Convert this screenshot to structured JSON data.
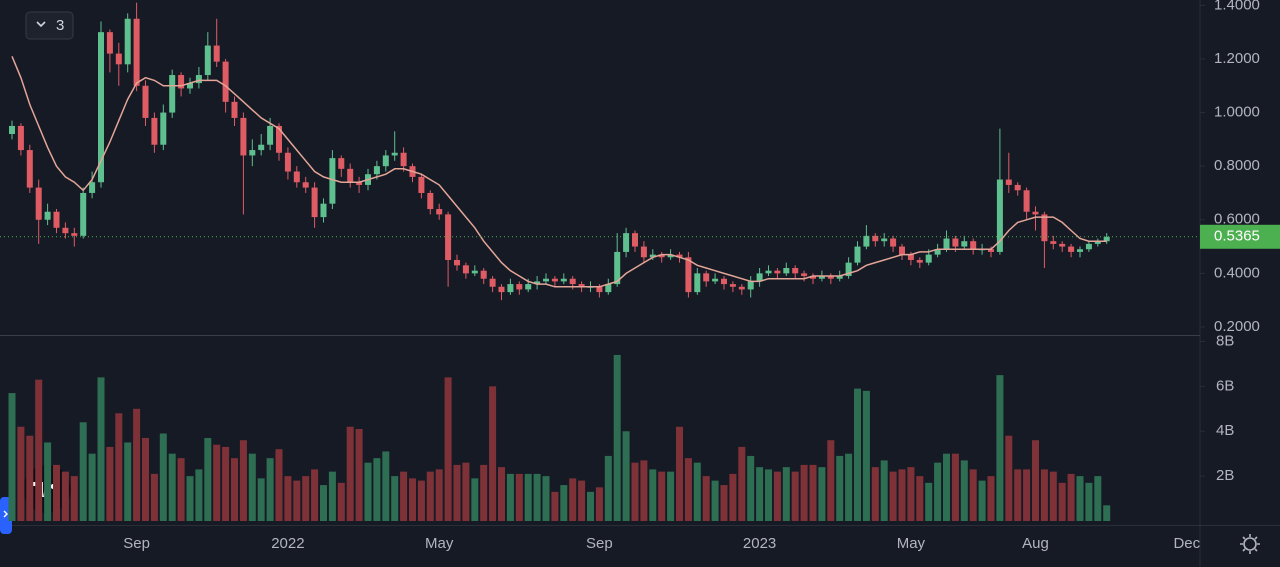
{
  "chart_data": [
    {
      "type": "candlestick",
      "indicator_count": 3,
      "categories": [
        null,
        null,
        null,
        null,
        null,
        null,
        null,
        null,
        null,
        null,
        null,
        null,
        null,
        null,
        "Sep",
        null,
        null,
        null,
        null,
        null,
        null,
        null,
        null,
        null,
        null,
        null,
        null,
        null,
        null,
        null,
        null,
        "2022",
        null,
        null,
        null,
        null,
        null,
        null,
        null,
        null,
        null,
        null,
        null,
        null,
        null,
        null,
        null,
        null,
        "May",
        null,
        null,
        null,
        null,
        null,
        null,
        null,
        null,
        null,
        null,
        null,
        null,
        null,
        null,
        null,
        null,
        null,
        "Sep",
        null,
        null,
        null,
        null,
        null,
        null,
        null,
        null,
        null,
        null,
        null,
        null,
        null,
        null,
        null,
        null,
        null,
        "2023",
        null,
        null,
        null,
        null,
        null,
        null,
        null,
        null,
        null,
        null,
        null,
        null,
        null,
        null,
        null,
        null,
        "May",
        null,
        null,
        null,
        null,
        null,
        null,
        null,
        null,
        null,
        null,
        null,
        null,
        null,
        "Aug",
        null,
        null,
        null,
        null,
        null,
        null,
        null,
        null,
        null,
        null,
        null,
        null,
        null,
        null,
        null,
        null,
        "Dec"
      ],
      "open": [
        0.92,
        0.95,
        0.86,
        0.72,
        0.6,
        0.63,
        0.57,
        0.55,
        0.54,
        0.7,
        0.74,
        1.3,
        1.22,
        1.18,
        1.35,
        1.1,
        0.98,
        0.88,
        1.0,
        1.14,
        1.09,
        1.11,
        1.14,
        1.25,
        1.19,
        1.04,
        0.98,
        0.84,
        0.86,
        0.88,
        0.95,
        0.85,
        0.78,
        0.74,
        0.72,
        0.61,
        0.66,
        0.83,
        0.79,
        0.74,
        0.73,
        0.77,
        0.8,
        0.84,
        0.85,
        0.8,
        0.76,
        0.7,
        0.64,
        0.62,
        0.45,
        0.43,
        0.4,
        0.41,
        0.38,
        0.35,
        0.33,
        0.36,
        0.34,
        0.36,
        0.37,
        0.38,
        0.37,
        0.38,
        0.36,
        0.35,
        0.35,
        0.33,
        0.36,
        0.48,
        0.55,
        0.5,
        0.46,
        0.47,
        0.46,
        0.47,
        0.46,
        0.33,
        0.4,
        0.37,
        0.38,
        0.36,
        0.35,
        0.34,
        0.37,
        0.4,
        0.41,
        0.4,
        0.42,
        0.4,
        0.39,
        0.38,
        0.39,
        0.38,
        0.39,
        0.44,
        0.5,
        0.54,
        0.52,
        0.53,
        0.5,
        0.47,
        0.45,
        0.44,
        0.47,
        0.49,
        0.53,
        0.5,
        0.52,
        0.49,
        0.49,
        0.48,
        0.75,
        0.73,
        0.71,
        0.63,
        0.62,
        0.52,
        0.51,
        0.5,
        0.48,
        0.49,
        0.51,
        0.52,
        null,
        null,
        null,
        null,
        null,
        null,
        null,
        null,
        null
      ],
      "high": [
        0.97,
        0.96,
        0.88,
        0.75,
        0.66,
        0.64,
        0.59,
        0.57,
        0.72,
        0.78,
        1.34,
        1.31,
        1.26,
        1.37,
        1.41,
        1.12,
        1.0,
        1.03,
        1.16,
        1.15,
        1.13,
        1.17,
        1.3,
        1.35,
        1.2,
        1.06,
        1.0,
        0.9,
        0.92,
        0.98,
        0.96,
        0.87,
        0.8,
        0.76,
        0.74,
        0.68,
        0.86,
        0.84,
        0.81,
        0.76,
        0.79,
        0.82,
        0.86,
        0.93,
        0.87,
        0.81,
        0.77,
        0.71,
        0.66,
        0.63,
        0.47,
        0.44,
        0.43,
        0.42,
        0.39,
        0.36,
        0.38,
        0.37,
        0.38,
        0.39,
        0.4,
        0.39,
        0.4,
        0.39,
        0.37,
        0.37,
        0.36,
        0.38,
        0.55,
        0.57,
        0.56,
        0.52,
        0.49,
        0.48,
        0.49,
        0.48,
        0.48,
        0.42,
        0.41,
        0.4,
        0.39,
        0.37,
        0.36,
        0.39,
        0.42,
        0.43,
        0.42,
        0.44,
        0.43,
        0.41,
        0.4,
        0.41,
        0.4,
        0.41,
        0.46,
        0.52,
        0.58,
        0.55,
        0.55,
        0.54,
        0.51,
        0.48,
        0.46,
        0.49,
        0.51,
        0.56,
        0.54,
        0.54,
        0.53,
        0.51,
        0.5,
        0.94,
        0.85,
        0.74,
        0.72,
        0.65,
        0.63,
        0.54,
        0.52,
        0.51,
        0.5,
        0.52,
        0.53,
        0.55,
        null,
        null,
        null,
        null,
        null,
        null,
        null,
        null,
        null
      ],
      "low": [
        0.9,
        0.84,
        0.7,
        0.51,
        0.58,
        0.55,
        0.53,
        0.5,
        0.53,
        0.68,
        0.72,
        1.15,
        1.1,
        1.15,
        1.08,
        0.95,
        0.85,
        0.86,
        0.98,
        1.06,
        1.07,
        1.09,
        1.12,
        1.17,
        1.0,
        0.95,
        0.62,
        0.8,
        0.84,
        0.86,
        0.82,
        0.75,
        0.72,
        0.7,
        0.57,
        0.59,
        0.64,
        0.76,
        0.72,
        0.7,
        0.71,
        0.75,
        0.78,
        0.82,
        0.78,
        0.74,
        0.68,
        0.62,
        0.6,
        0.35,
        0.41,
        0.38,
        0.39,
        0.36,
        0.33,
        0.3,
        0.32,
        0.32,
        0.33,
        0.34,
        0.36,
        0.35,
        0.36,
        0.34,
        0.33,
        0.33,
        0.31,
        0.32,
        0.35,
        0.46,
        0.48,
        0.44,
        0.45,
        0.44,
        0.45,
        0.44,
        0.31,
        0.32,
        0.35,
        0.36,
        0.34,
        0.33,
        0.32,
        0.31,
        0.35,
        0.39,
        0.38,
        0.39,
        0.38,
        0.37,
        0.36,
        0.37,
        0.36,
        0.37,
        0.38,
        0.43,
        0.49,
        0.5,
        0.5,
        0.48,
        0.45,
        0.43,
        0.42,
        0.43,
        0.46,
        0.48,
        0.48,
        0.49,
        0.47,
        0.47,
        0.46,
        0.47,
        0.7,
        0.69,
        0.6,
        0.56,
        0.42,
        0.49,
        0.48,
        0.46,
        0.46,
        0.48,
        0.5,
        0.51,
        null,
        null,
        null,
        null,
        null,
        null,
        null,
        null,
        null
      ],
      "close": [
        0.95,
        0.86,
        0.72,
        0.6,
        0.63,
        0.57,
        0.55,
        0.54,
        0.7,
        0.74,
        1.3,
        1.22,
        1.18,
        1.35,
        1.1,
        0.98,
        0.88,
        1.0,
        1.14,
        1.09,
        1.11,
        1.14,
        1.25,
        1.19,
        1.04,
        0.98,
        0.84,
        0.86,
        0.88,
        0.95,
        0.85,
        0.78,
        0.74,
        0.72,
        0.61,
        0.66,
        0.83,
        0.79,
        0.74,
        0.73,
        0.77,
        0.8,
        0.84,
        0.85,
        0.8,
        0.76,
        0.7,
        0.64,
        0.62,
        0.45,
        0.43,
        0.4,
        0.41,
        0.38,
        0.35,
        0.33,
        0.36,
        0.34,
        0.36,
        0.37,
        0.38,
        0.37,
        0.38,
        0.36,
        0.35,
        0.35,
        0.33,
        0.36,
        0.48,
        0.55,
        0.5,
        0.46,
        0.47,
        0.46,
        0.47,
        0.46,
        0.33,
        0.4,
        0.37,
        0.38,
        0.36,
        0.35,
        0.34,
        0.37,
        0.4,
        0.41,
        0.4,
        0.42,
        0.4,
        0.39,
        0.38,
        0.39,
        0.38,
        0.39,
        0.44,
        0.5,
        0.54,
        0.52,
        0.53,
        0.5,
        0.47,
        0.45,
        0.44,
        0.47,
        0.49,
        0.53,
        0.5,
        0.52,
        0.49,
        0.49,
        0.48,
        0.75,
        0.73,
        0.71,
        0.63,
        0.62,
        0.52,
        0.51,
        0.5,
        0.48,
        0.49,
        0.51,
        0.52,
        0.5365,
        null,
        null,
        null,
        null,
        null,
        null,
        null,
        null,
        null
      ],
      "ma": {
        "color": "#e3a597",
        "values": [
          1.21,
          1.13,
          1.03,
          0.95,
          0.87,
          0.8,
          0.76,
          0.74,
          0.71,
          0.75,
          0.82,
          0.89,
          0.97,
          1.05,
          1.11,
          1.13,
          1.12,
          1.1,
          1.1,
          1.1,
          1.11,
          1.12,
          1.12,
          1.12,
          1.1,
          1.07,
          1.04,
          1.01,
          0.98,
          0.96,
          0.94,
          0.9,
          0.86,
          0.82,
          0.78,
          0.76,
          0.75,
          0.74,
          0.74,
          0.74,
          0.75,
          0.76,
          0.77,
          0.79,
          0.79,
          0.78,
          0.77,
          0.75,
          0.73,
          0.69,
          0.65,
          0.61,
          0.57,
          0.52,
          0.48,
          0.44,
          0.41,
          0.39,
          0.37,
          0.36,
          0.36,
          0.35,
          0.35,
          0.35,
          0.35,
          0.35,
          0.35,
          0.36,
          0.37,
          0.4,
          0.42,
          0.44,
          0.46,
          0.47,
          0.47,
          0.46,
          0.45,
          0.43,
          0.42,
          0.41,
          0.4,
          0.39,
          0.38,
          0.37,
          0.37,
          0.38,
          0.38,
          0.38,
          0.38,
          0.38,
          0.39,
          0.39,
          0.39,
          0.39,
          0.4,
          0.41,
          0.43,
          0.44,
          0.45,
          0.46,
          0.47,
          0.47,
          0.48,
          0.48,
          0.49,
          0.49,
          0.49,
          0.49,
          0.49,
          0.49,
          0.49,
          0.52,
          0.56,
          0.59,
          0.6,
          0.61,
          0.61,
          0.61,
          0.59,
          0.56,
          0.53,
          0.52,
          0.52,
          0.52,
          null,
          null,
          null,
          null,
          null,
          null,
          null,
          null,
          null
        ]
      },
      "up_color": "#5fc08f",
      "down_color": "#e05c65",
      "last_price": 0.5365,
      "last_price_color": "#4caf50",
      "ylim": [
        0.17,
        1.42
      ],
      "yticks": [
        {
          "value": 0.2,
          "label": "0.2000"
        },
        {
          "value": 0.4,
          "label": "0.4000"
        },
        {
          "value": 0.6,
          "label": "0.6000"
        },
        {
          "value": 0.8,
          "label": "0.8000"
        },
        {
          "value": 1.0,
          "label": "1.0000"
        },
        {
          "value": 1.2,
          "label": "1.2000"
        },
        {
          "value": 1.4,
          "label": "1.4000"
        }
      ]
    },
    {
      "type": "bar",
      "values": [
        5.7,
        4.2,
        3.8,
        6.3,
        3.5,
        2.5,
        2.2,
        2.0,
        4.4,
        3.0,
        6.4,
        3.3,
        4.8,
        3.5,
        5.0,
        3.7,
        2.1,
        3.9,
        3.0,
        2.8,
        2.0,
        2.3,
        3.7,
        3.4,
        3.3,
        2.8,
        3.6,
        3.0,
        1.9,
        2.8,
        3.2,
        2.0,
        1.8,
        2.0,
        2.3,
        1.6,
        2.2,
        1.7,
        4.2,
        4.1,
        2.6,
        2.8,
        3.1,
        2.0,
        2.2,
        1.9,
        1.8,
        2.2,
        2.3,
        6.4,
        2.5,
        2.6,
        1.9,
        2.5,
        6.0,
        2.4,
        2.1,
        2.1,
        2.1,
        2.1,
        2.0,
        1.3,
        1.6,
        1.9,
        1.8,
        1.3,
        1.5,
        2.9,
        7.4,
        4.0,
        2.6,
        2.7,
        2.3,
        2.2,
        2.2,
        4.2,
        2.8,
        2.6,
        2.0,
        1.8,
        1.6,
        2.1,
        3.3,
        2.9,
        2.4,
        2.3,
        2.2,
        2.4,
        2.2,
        2.5,
        2.5,
        2.4,
        3.6,
        2.9,
        3.0,
        5.9,
        5.8,
        2.4,
        2.7,
        2.2,
        2.3,
        2.4,
        2.0,
        1.7,
        2.6,
        3.0,
        3.0,
        2.7,
        2.3,
        1.8,
        2.0,
        6.5,
        3.8,
        2.3,
        2.3,
        3.6,
        2.3,
        2.2,
        1.7,
        2.1,
        2.0,
        1.7,
        2.0,
        0.7,
        null,
        null,
        null,
        null,
        null,
        null,
        null,
        null,
        null
      ],
      "up_color": "#2e6e52",
      "down_color": "#7e3238",
      "ylim": [
        0,
        8.2
      ],
      "yticks": [
        {
          "value": 2,
          "label": "2B"
        },
        {
          "value": 4,
          "label": "4B"
        },
        {
          "value": 6,
          "label": "6B"
        },
        {
          "value": 8,
          "label": "8B"
        }
      ]
    }
  ]
}
